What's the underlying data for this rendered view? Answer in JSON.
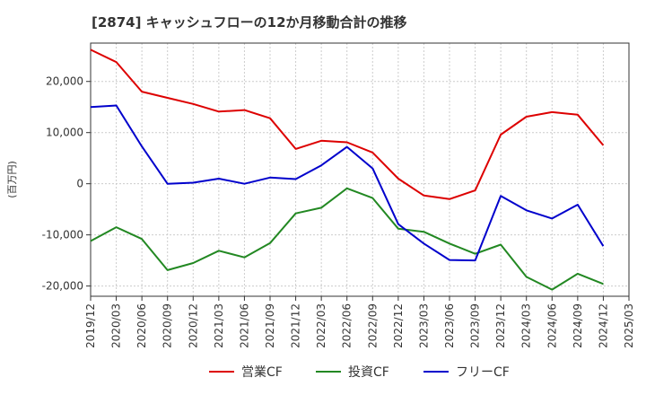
{
  "chart_data": {
    "type": "line",
    "title": "[2874]  キャッシュフローの12か月移動合計の推移",
    "ylabel": "(百万円)",
    "xlabel": "",
    "ylim": [
      -22000,
      27500
    ],
    "yticks": [
      -20000,
      -10000,
      0,
      10000,
      20000
    ],
    "ytick_labels": [
      "-20,000",
      "-10,000",
      "0",
      "10,000",
      "20,000"
    ],
    "x": [
      "2019/12",
      "2020/03",
      "2020/06",
      "2020/09",
      "2020/12",
      "2021/03",
      "2021/06",
      "2021/09",
      "2021/12",
      "2022/03",
      "2022/06",
      "2022/09",
      "2022/12",
      "2023/03",
      "2023/06",
      "2023/09",
      "2023/12",
      "2024/03",
      "2024/06",
      "2024/09",
      "2024/12",
      "2025/03"
    ],
    "series": [
      {
        "name": "営業CF",
        "color": "#dd0000",
        "values": [
          26200,
          23800,
          18000,
          16800,
          15600,
          14100,
          14400,
          12800,
          6800,
          8400,
          8100,
          6100,
          1000,
          -2300,
          -3000,
          -1300,
          9600,
          13100,
          14000,
          13500,
          7500,
          null
        ]
      },
      {
        "name": "投資CF",
        "color": "#228822",
        "values": [
          -11200,
          -8500,
          -10800,
          -16900,
          -15500,
          -13100,
          -14400,
          -11600,
          -5800,
          -4700,
          -900,
          -2800,
          -8800,
          -9400,
          -11700,
          -13700,
          -11900,
          -18200,
          -20700,
          -17600,
          -19600,
          null
        ]
      },
      {
        "name": "フリーCF",
        "color": "#0000cc",
        "values": [
          15000,
          15300,
          7300,
          0,
          200,
          1000,
          0,
          1200,
          900,
          3600,
          7200,
          3000,
          -7900,
          -11700,
          -14900,
          -15000,
          -2400,
          -5200,
          -6800,
          -4100,
          -12200,
          null
        ]
      }
    ]
  }
}
